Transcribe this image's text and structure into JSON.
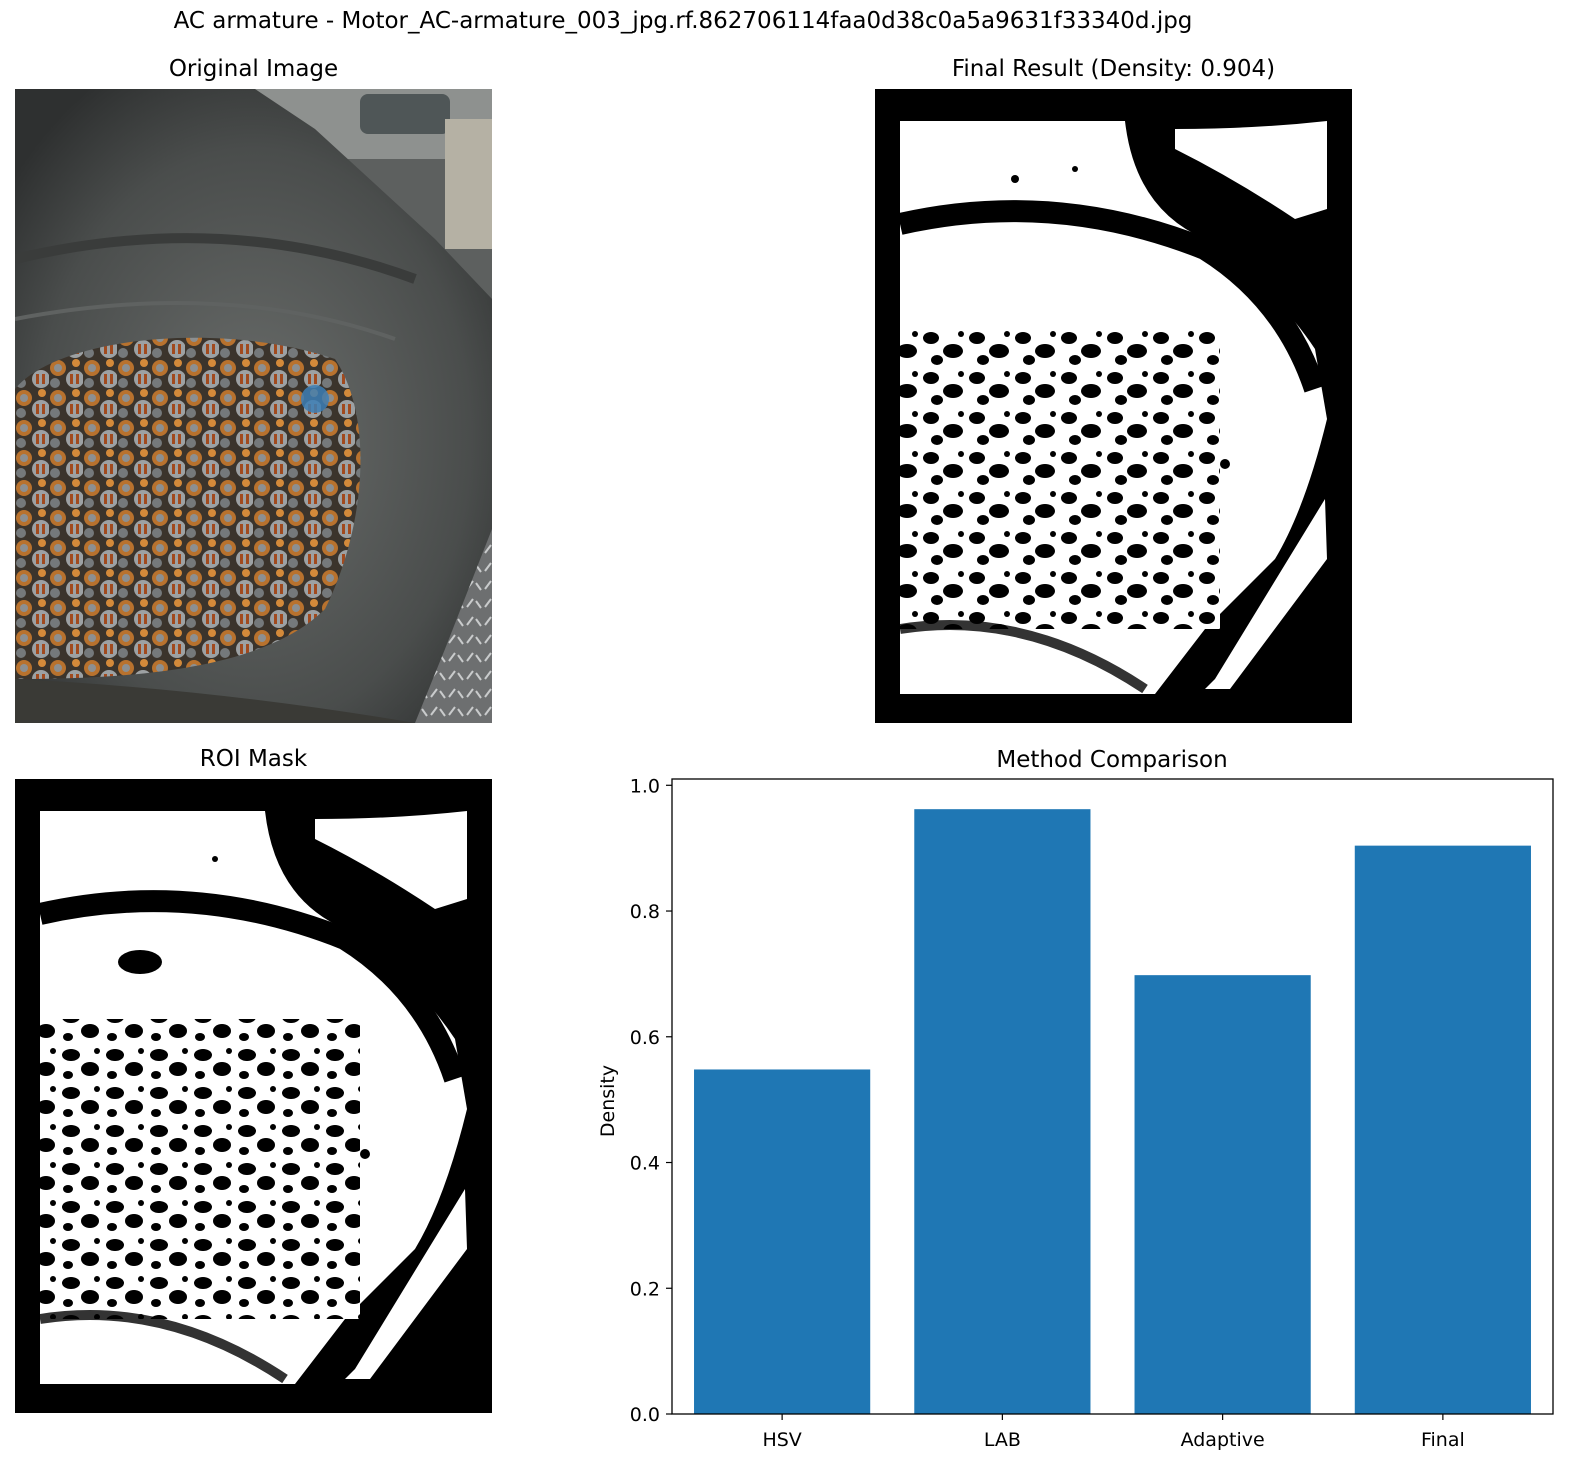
{
  "figure": {
    "suptitle": "AC armature - Motor_AC-armature_003_jpg.rf.862706114faa0d38c0a5a9631f33340d.jpg"
  },
  "panels": {
    "original": {
      "title": "Original Image"
    },
    "final": {
      "title": "Final Result (Density: 0.904)"
    },
    "roi": {
      "title": "ROI Mask"
    }
  },
  "colors": {
    "bar": "#1f77b4",
    "mask_fg": "#ffffff",
    "mask_bg": "#000000"
  },
  "chart_data": {
    "type": "bar",
    "title": "Method Comparison",
    "categories": [
      "HSV",
      "LAB",
      "Adaptive",
      "Final"
    ],
    "values": [
      0.548,
      0.962,
      0.698,
      0.904
    ],
    "xlabel": "",
    "ylabel": "Density",
    "ylim": [
      0,
      1.01
    ],
    "yticks": [
      "0.0",
      "0.2",
      "0.4",
      "0.6",
      "0.8",
      "1.0"
    ],
    "grid": false,
    "legend": "none"
  }
}
